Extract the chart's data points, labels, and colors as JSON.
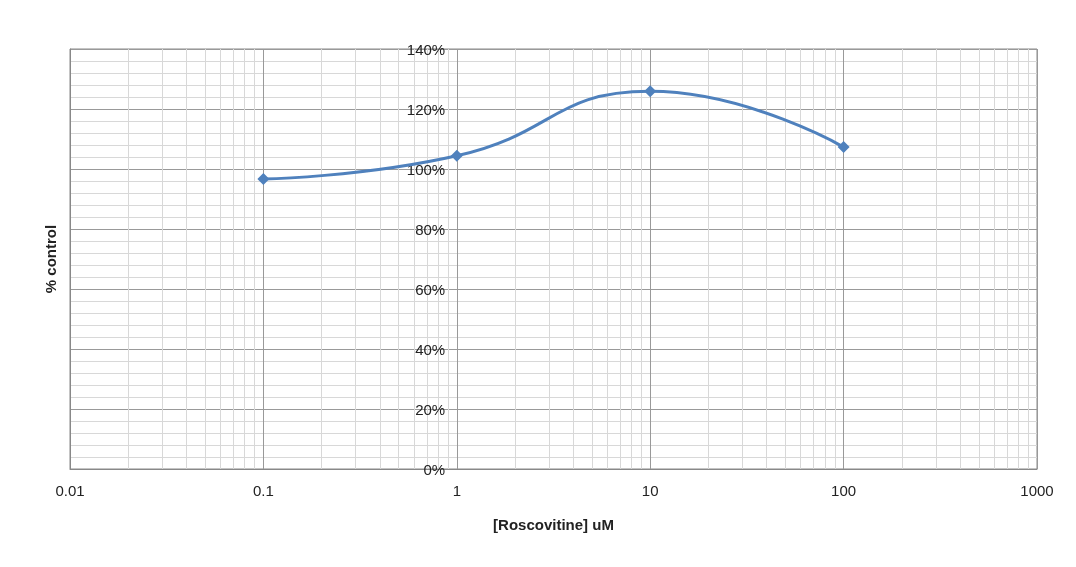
{
  "chart_data": {
    "type": "line",
    "xlabel": "[Roscovitine] uM",
    "ylabel": "% control",
    "x": [
      0.1,
      1,
      10,
      100
    ],
    "series": [
      {
        "color": "#4f81bd",
        "values": [
          96.7,
          104.4,
          125.9,
          107.3
        ]
      }
    ],
    "log": "x",
    "xlim": [
      0.01,
      1000
    ],
    "xticks": [
      0.01,
      0.1,
      1,
      10,
      100,
      1000
    ],
    "ylim": [
      0,
      140
    ],
    "yticks": [
      {
        "value": 0,
        "label": "0%"
      },
      {
        "value": 20,
        "label": "20%"
      },
      {
        "value": 40,
        "label": "40%"
      },
      {
        "value": 60,
        "label": "60%"
      },
      {
        "value": 80,
        "label": "80%"
      },
      {
        "value": 100,
        "label": "100%"
      },
      {
        "value": 120,
        "label": "120%"
      },
      {
        "value": 140,
        "label": "140%"
      }
    ],
    "grid": true,
    "marker": "diamond",
    "line_style": "solid"
  }
}
